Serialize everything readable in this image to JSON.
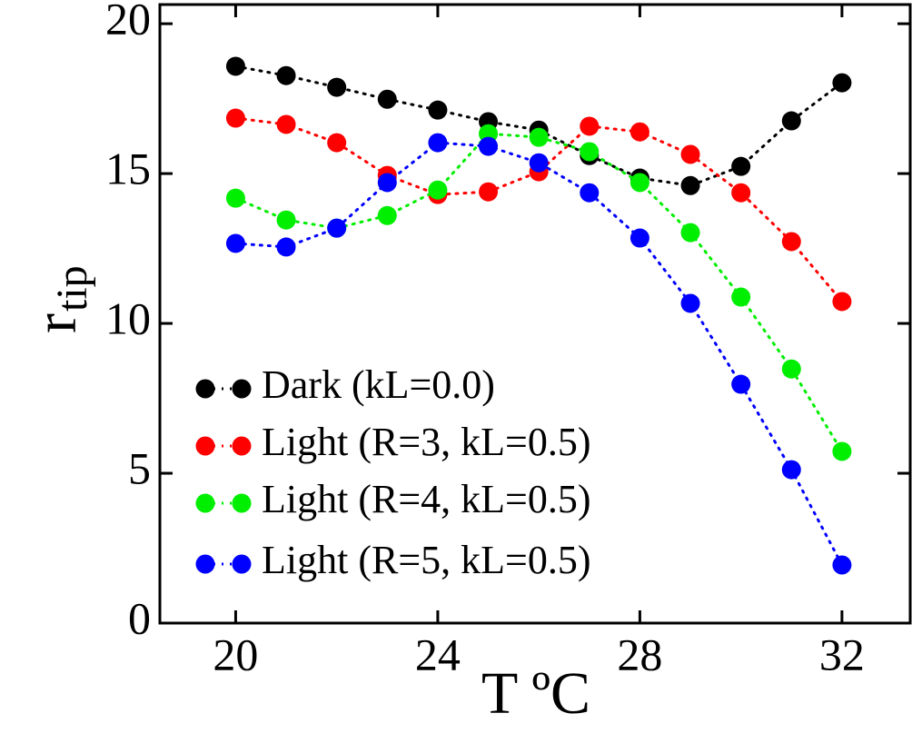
{
  "chart_data": {
    "type": "line",
    "x_label": "T ºC",
    "y_label": "r",
    "y_label_sub": "tip",
    "x": [
      20,
      21,
      22,
      23,
      24,
      25,
      26,
      27,
      28,
      29,
      30,
      31,
      32
    ],
    "series": [
      {
        "name": "Dark (kL=0.0)",
        "color": "#000000",
        "values": [
          18.58,
          18.27,
          17.88,
          17.48,
          17.12,
          16.73,
          16.45,
          15.6,
          14.85,
          14.6,
          15.24,
          16.76,
          18.03
        ]
      },
      {
        "name": "Light (R=3, kL=0.5)",
        "color": "#ff0000",
        "values": [
          16.85,
          16.64,
          16.03,
          14.94,
          14.3,
          14.39,
          15.06,
          16.58,
          16.39,
          15.64,
          14.36,
          12.73,
          10.73
        ]
      },
      {
        "name": "Light (R=4, kL=0.5)",
        "color": "#00ee00",
        "values": [
          14.18,
          13.45,
          13.18,
          13.6,
          14.45,
          16.33,
          16.21,
          15.73,
          14.7,
          13.03,
          10.88,
          8.48,
          5.73
        ]
      },
      {
        "name": "Light (R=5, kL=0.5)",
        "color": "#0000ff",
        "values": [
          12.67,
          12.55,
          13.18,
          14.7,
          16.03,
          15.91,
          15.36,
          14.36,
          12.85,
          10.67,
          7.97,
          5.12,
          1.94
        ]
      }
    ],
    "xlim": [
      18.5,
      33.35
    ],
    "ylim": [
      0,
      20.64
    ],
    "xticks": [
      20,
      24,
      28,
      32
    ],
    "yticks": [
      0,
      5,
      10,
      15,
      20
    ],
    "line_style": "dotted",
    "legend": "lower-left"
  }
}
